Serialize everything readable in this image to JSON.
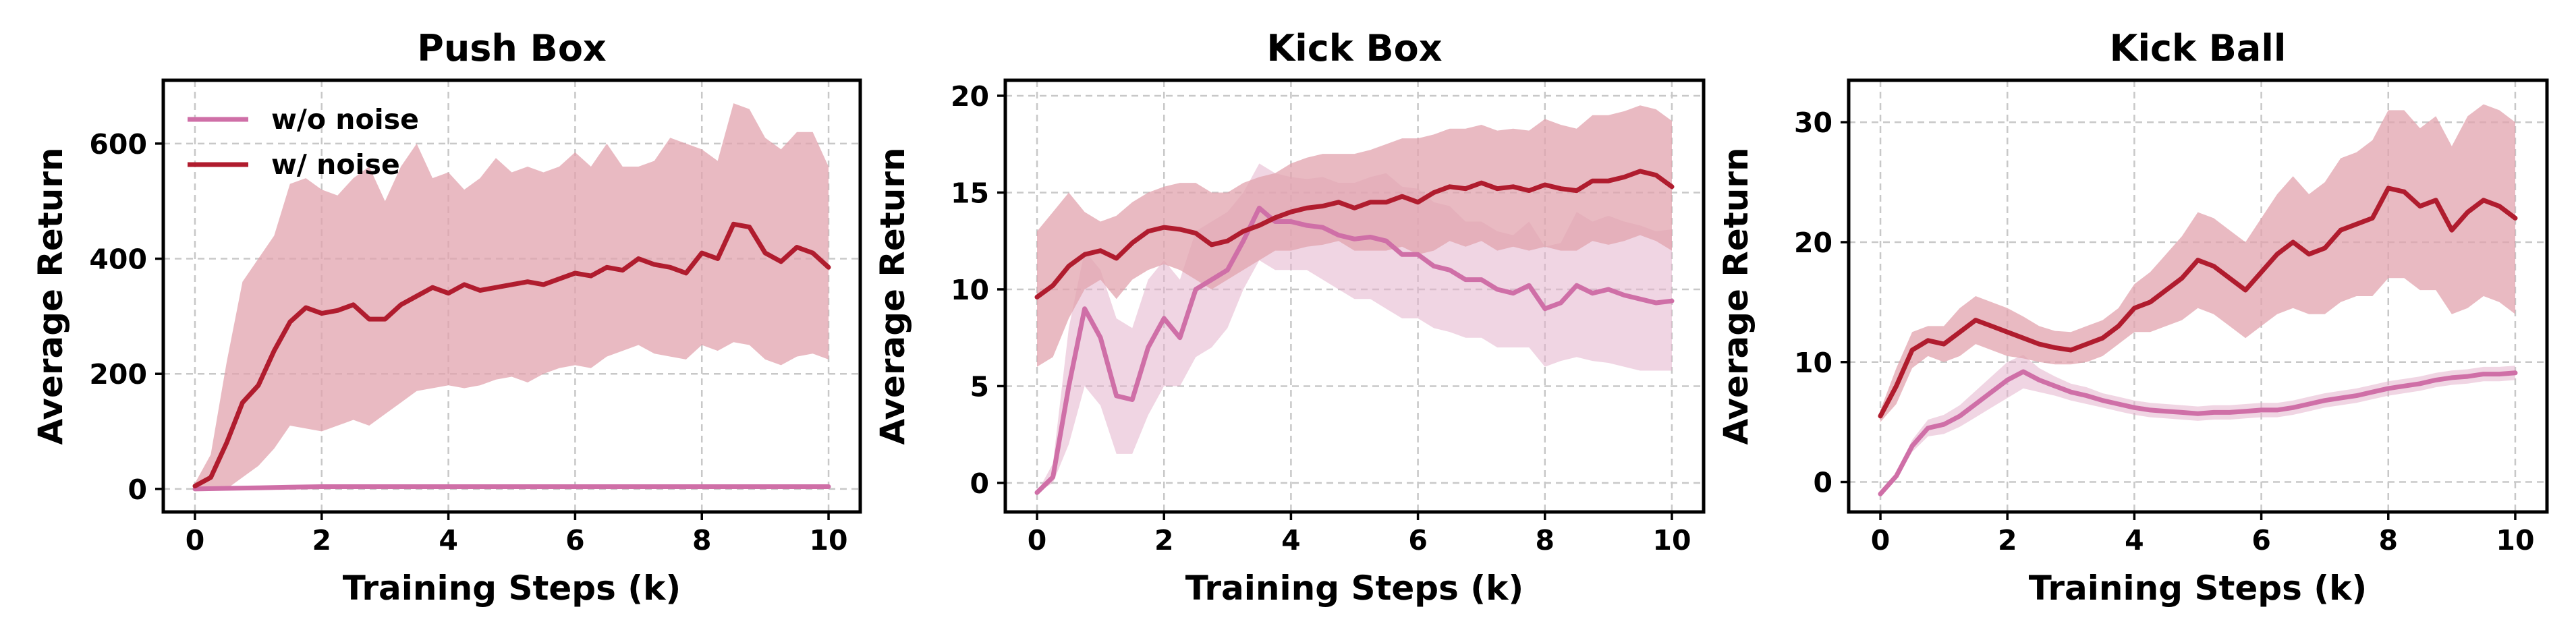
{
  "colors": {
    "wo_noise": "#cf6fa7",
    "w_noise": "#b01c2e",
    "wo_noise_band": "#e3b3cc",
    "w_noise_band": "#e2a3ad",
    "grid": "#c8c8c8"
  },
  "legend": {
    "items": [
      "w/o noise",
      "w/ noise"
    ],
    "location": "upper-left of first panel"
  },
  "chart_data": [
    {
      "type": "line",
      "title": "Push Box",
      "xlabel": "Training Steps (k)",
      "ylabel": "Average Return",
      "xlim": [
        -0.5,
        10.5
      ],
      "ylim": [
        -40,
        710
      ],
      "xticks": [
        0,
        2,
        4,
        6,
        8,
        10
      ],
      "yticks": [
        0,
        200,
        400,
        600
      ],
      "grid": true,
      "series": [
        {
          "name": "w/o noise",
          "color": "#cf6fa7",
          "x": [
            0,
            0.5,
            1,
            1.5,
            2,
            3,
            4,
            5,
            6,
            7,
            8,
            9,
            10
          ],
          "y": [
            0,
            1,
            2,
            3,
            4,
            4,
            4,
            4,
            4,
            4,
            4,
            4,
            4
          ],
          "lower": [
            0,
            0,
            1,
            2,
            3,
            3,
            3,
            3,
            3,
            3,
            3,
            3,
            3
          ],
          "upper": [
            1,
            2,
            3,
            5,
            6,
            6,
            6,
            6,
            6,
            6,
            6,
            6,
            6
          ]
        },
        {
          "name": "w/ noise",
          "color": "#b01c2e",
          "x": [
            0,
            0.25,
            0.5,
            0.75,
            1,
            1.25,
            1.5,
            1.75,
            2,
            2.25,
            2.5,
            2.75,
            3,
            3.25,
            3.5,
            3.75,
            4,
            4.25,
            4.5,
            4.75,
            5,
            5.25,
            5.5,
            5.75,
            6,
            6.25,
            6.5,
            6.75,
            7,
            7.25,
            7.5,
            7.75,
            8,
            8.25,
            8.5,
            8.75,
            9,
            9.25,
            9.5,
            9.75,
            10
          ],
          "y": [
            5,
            20,
            80,
            150,
            180,
            240,
            290,
            315,
            305,
            310,
            320,
            295,
            295,
            320,
            335,
            350,
            340,
            355,
            345,
            350,
            355,
            360,
            355,
            365,
            375,
            370,
            385,
            380,
            400,
            390,
            385,
            375,
            410,
            400,
            460,
            455,
            410,
            395,
            420,
            410,
            385
          ],
          "lower": [
            0,
            0,
            0,
            20,
            40,
            70,
            110,
            105,
            100,
            110,
            120,
            110,
            130,
            150,
            170,
            175,
            180,
            175,
            180,
            190,
            195,
            185,
            200,
            210,
            215,
            210,
            230,
            240,
            250,
            235,
            230,
            225,
            250,
            240,
            255,
            250,
            225,
            215,
            230,
            235,
            225
          ],
          "upper": [
            10,
            60,
            220,
            360,
            400,
            440,
            530,
            540,
            520,
            510,
            540,
            560,
            500,
            560,
            600,
            540,
            550,
            520,
            540,
            575,
            550,
            560,
            550,
            560,
            585,
            560,
            600,
            560,
            560,
            570,
            610,
            600,
            590,
            570,
            670,
            660,
            610,
            590,
            620,
            620,
            560
          ]
        }
      ]
    },
    {
      "type": "line",
      "title": "Kick Box",
      "xlabel": "Training Steps (k)",
      "ylabel": "Average Return",
      "xlim": [
        -0.5,
        10.5
      ],
      "ylim": [
        -1.5,
        20.8
      ],
      "xticks": [
        0,
        2,
        4,
        6,
        8,
        10
      ],
      "yticks": [
        0,
        5,
        10,
        15,
        20
      ],
      "grid": true,
      "series": [
        {
          "name": "w/o noise",
          "color": "#cf6fa7",
          "x": [
            0,
            0.25,
            0.5,
            0.75,
            1,
            1.25,
            1.5,
            1.75,
            2,
            2.25,
            2.5,
            2.75,
            3,
            3.25,
            3.5,
            3.75,
            4,
            4.25,
            4.5,
            4.75,
            5,
            5.25,
            5.5,
            5.75,
            6,
            6.25,
            6.5,
            6.75,
            7,
            7.25,
            7.5,
            7.75,
            8,
            8.25,
            8.5,
            8.75,
            9,
            9.25,
            9.5,
            9.75,
            10
          ],
          "y": [
            -0.5,
            0.3,
            5,
            9,
            7.5,
            4.5,
            4.3,
            7,
            8.5,
            7.5,
            10,
            10.5,
            11,
            12.5,
            14.2,
            13.5,
            13.5,
            13.3,
            13.2,
            12.8,
            12.6,
            12.7,
            12.5,
            11.8,
            11.8,
            11.2,
            11,
            10.5,
            10.5,
            10,
            9.8,
            10.2,
            9,
            9.3,
            10.2,
            9.8,
            10,
            9.7,
            9.5,
            9.3,
            9.4
          ],
          "lower": [
            -0.5,
            0,
            2,
            5,
            4,
            1.5,
            1.5,
            3.5,
            5,
            5,
            6.5,
            7,
            8,
            10,
            11.5,
            11,
            11,
            11,
            10.5,
            10,
            9.5,
            9.5,
            9,
            8.5,
            8.5,
            8,
            7.8,
            7.5,
            7.5,
            7,
            7,
            7,
            6,
            6.3,
            6.5,
            6.3,
            6.2,
            6,
            5.8,
            5.8,
            5.8
          ],
          "upper": [
            -0.5,
            1,
            8,
            12,
            11,
            8.5,
            8,
            10.5,
            11.5,
            10.5,
            13,
            13.5,
            14,
            15,
            16.5,
            16,
            15.8,
            15.7,
            15.8,
            15.5,
            15.5,
            15.8,
            16,
            15.3,
            15.2,
            14.5,
            14.3,
            13.5,
            13.5,
            13,
            12.8,
            13.5,
            12.2,
            12.4,
            14,
            13.5,
            13.8,
            13.5,
            13.3,
            13,
            13.1
          ]
        },
        {
          "name": "w/ noise",
          "color": "#b01c2e",
          "x": [
            0,
            0.25,
            0.5,
            0.75,
            1,
            1.25,
            1.5,
            1.75,
            2,
            2.25,
            2.5,
            2.75,
            3,
            3.25,
            3.5,
            3.75,
            4,
            4.25,
            4.5,
            4.75,
            5,
            5.25,
            5.5,
            5.75,
            6,
            6.25,
            6.5,
            6.75,
            7,
            7.25,
            7.5,
            7.75,
            8,
            8.25,
            8.5,
            8.75,
            9,
            9.25,
            9.5,
            9.75,
            10
          ],
          "y": [
            9.6,
            10.2,
            11.2,
            11.8,
            12,
            11.6,
            12.4,
            13,
            13.2,
            13.1,
            12.9,
            12.3,
            12.5,
            13,
            13.3,
            13.7,
            14,
            14.2,
            14.3,
            14.5,
            14.2,
            14.5,
            14.5,
            14.8,
            14.5,
            15,
            15.3,
            15.2,
            15.5,
            15.2,
            15.3,
            15.1,
            15.4,
            15.2,
            15.1,
            15.6,
            15.6,
            15.8,
            16.1,
            15.9,
            15.3
          ],
          "lower": [
            6,
            6.5,
            8.5,
            10,
            10.5,
            9.5,
            10.5,
            11,
            11.3,
            11,
            10.5,
            10,
            10.5,
            11,
            11.5,
            12,
            12,
            12.2,
            12.3,
            12.5,
            12,
            12,
            12,
            12.2,
            11.8,
            12,
            12.5,
            12.2,
            12.5,
            12,
            12.2,
            12,
            12.2,
            12,
            12,
            12.5,
            12.3,
            12.5,
            12.8,
            12.5,
            12
          ],
          "upper": [
            13,
            14,
            15,
            14,
            13.5,
            13.8,
            14.5,
            15,
            15.3,
            15.5,
            15.5,
            15,
            15,
            15.5,
            15.8,
            16,
            16.5,
            16.8,
            17,
            17,
            17,
            17.2,
            17.5,
            17.8,
            17.8,
            18,
            18.3,
            18.3,
            18.5,
            18.2,
            18.3,
            18.2,
            18.8,
            18.5,
            18.3,
            19,
            19,
            19.2,
            19.5,
            19.3,
            18.7
          ]
        }
      ]
    },
    {
      "type": "line",
      "title": "Kick Ball",
      "xlabel": "Training Steps (k)",
      "ylabel": "Average Return",
      "xlim": [
        -0.5,
        10.5
      ],
      "ylim": [
        -2.5,
        33.5
      ],
      "xticks": [
        0,
        2,
        4,
        6,
        8,
        10
      ],
      "yticks": [
        0,
        10,
        20,
        30
      ],
      "grid": true,
      "series": [
        {
          "name": "w/o noise",
          "color": "#cf6fa7",
          "x": [
            0,
            0.25,
            0.5,
            0.75,
            1,
            1.25,
            1.5,
            1.75,
            2,
            2.25,
            2.5,
            2.75,
            3,
            3.25,
            3.5,
            3.75,
            4,
            4.25,
            4.5,
            4.75,
            5,
            5.25,
            5.5,
            5.75,
            6,
            6.25,
            6.5,
            6.75,
            7,
            7.25,
            7.5,
            7.75,
            8,
            8.25,
            8.5,
            8.75,
            9,
            9.25,
            9.5,
            9.75,
            10
          ],
          "y": [
            -1,
            0.5,
            3,
            4.5,
            4.8,
            5.5,
            6.5,
            7.5,
            8.5,
            9.2,
            8.5,
            8,
            7.5,
            7.2,
            6.8,
            6.5,
            6.2,
            6,
            5.9,
            5.8,
            5.7,
            5.8,
            5.8,
            5.9,
            6,
            6,
            6.2,
            6.5,
            6.8,
            7,
            7.2,
            7.5,
            7.8,
            8,
            8.2,
            8.5,
            8.7,
            8.8,
            9,
            9,
            9.1
          ],
          "lower": [
            -1,
            0.3,
            2.5,
            3.8,
            4,
            4.6,
            5.4,
            6.2,
            7,
            7.8,
            7.5,
            7.2,
            6.8,
            6.5,
            6.2,
            5.9,
            5.6,
            5.4,
            5.3,
            5.2,
            5.1,
            5.2,
            5.2,
            5.3,
            5.4,
            5.4,
            5.6,
            5.9,
            6.2,
            6.4,
            6.6,
            6.9,
            7.2,
            7.4,
            7.6,
            7.9,
            8.1,
            8.2,
            8.4,
            8.4,
            8.5
          ],
          "upper": [
            -1,
            0.7,
            3.5,
            5.2,
            5.6,
            6.4,
            7.6,
            8.8,
            10,
            10.6,
            9.5,
            8.8,
            8.2,
            7.9,
            7.4,
            7.1,
            6.8,
            6.6,
            6.5,
            6.4,
            6.3,
            6.4,
            6.4,
            6.5,
            6.6,
            6.6,
            6.8,
            7.1,
            7.4,
            7.6,
            7.8,
            8.1,
            8.4,
            8.6,
            8.8,
            9.1,
            9.3,
            9.4,
            9.6,
            9.6,
            9.7
          ]
        },
        {
          "name": "w/ noise",
          "color": "#b01c2e",
          "x": [
            0,
            0.25,
            0.5,
            0.75,
            1,
            1.25,
            1.5,
            1.75,
            2,
            2.25,
            2.5,
            2.75,
            3,
            3.25,
            3.5,
            3.75,
            4,
            4.25,
            4.5,
            4.75,
            5,
            5.25,
            5.5,
            5.75,
            6,
            6.25,
            6.5,
            6.75,
            7,
            7.25,
            7.5,
            7.75,
            8,
            8.25,
            8.5,
            8.75,
            9,
            9.25,
            9.5,
            9.75,
            10
          ],
          "y": [
            5.5,
            8,
            11,
            11.8,
            11.5,
            12.5,
            13.5,
            13,
            12.5,
            12,
            11.5,
            11.2,
            11,
            11.5,
            12,
            13,
            14.5,
            15,
            16,
            17,
            18.5,
            18,
            17,
            16,
            17.5,
            19,
            20,
            19,
            19.5,
            21,
            21.5,
            22,
            24.5,
            24.2,
            23,
            23.5,
            21,
            22.5,
            23.5,
            23,
            22
          ],
          "lower": [
            5,
            6.5,
            9.5,
            10.5,
            10,
            10.5,
            11.5,
            11,
            10.5,
            10.3,
            10,
            9.8,
            9.8,
            10,
            10.5,
            11.5,
            12.5,
            12.5,
            13,
            13.5,
            14.5,
            14,
            13,
            12,
            13,
            14,
            14.5,
            14,
            14,
            15,
            15.5,
            15.5,
            17,
            17,
            16,
            16,
            14,
            14.5,
            15.5,
            15,
            14
          ],
          "upper": [
            6,
            9.5,
            12.5,
            13,
            13,
            14.5,
            15.5,
            15,
            14.5,
            13.8,
            13,
            12.6,
            12.5,
            13,
            13.5,
            14.5,
            16.5,
            17.5,
            19,
            20.5,
            22.5,
            22,
            21,
            20,
            22,
            24,
            25.5,
            24,
            25,
            27,
            27.5,
            28.5,
            31,
            31,
            29.5,
            30.5,
            28,
            30.5,
            31.5,
            31,
            30
          ]
        }
      ]
    }
  ]
}
